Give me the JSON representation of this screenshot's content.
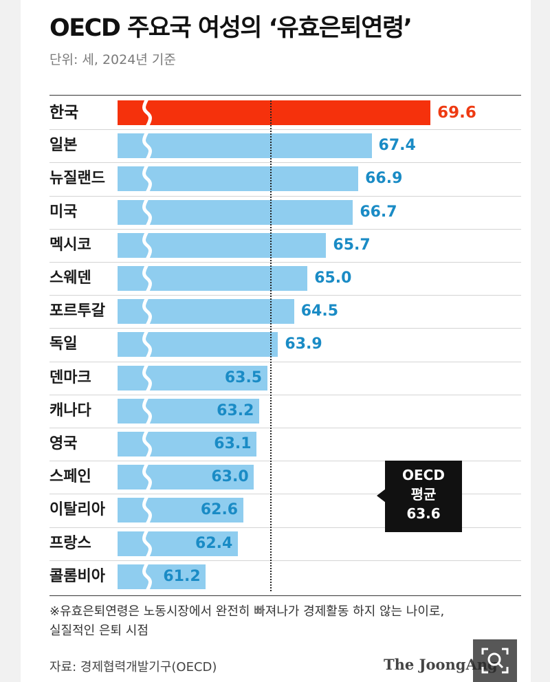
{
  "title": "OECD 주요국 여성의 ‘유효은퇴연령’",
  "subtitle": "단위: 세, 2024년 기준",
  "footnote": [
    "※유효은퇴연령은 노동시장에서 완전히 빠져나가 경제활동 하지 않는 나이로,",
    "실질적인 은퇴 시점"
  ],
  "source": "자료: 경제협력개발기구(OECD)",
  "logo": "The JoongAng",
  "callout": {
    "line1": "OECD",
    "line2": "평균",
    "line3": "63.6"
  },
  "colors": {
    "highlight": "#f5310c",
    "bar": "#8fcdef",
    "value_text": "#1a8bc5",
    "highlight_text": "#ee3a12"
  },
  "icons": {
    "zoom": "zoom-magnifier-icon"
  },
  "chart_data": {
    "type": "bar",
    "orientation": "horizontal",
    "categories": [
      "한국",
      "일본",
      "뉴질랜드",
      "미국",
      "멕시코",
      "스웨덴",
      "포르투갈",
      "독일",
      "덴마크",
      "캐나다",
      "영국",
      "스페인",
      "이탈리아",
      "프랑스",
      "콜롬비아"
    ],
    "values": [
      69.6,
      67.4,
      66.9,
      66.7,
      65.7,
      65.0,
      64.5,
      63.9,
      63.5,
      63.2,
      63.1,
      63.0,
      62.6,
      62.4,
      61.2
    ],
    "labels": [
      "69.6",
      "67.4",
      "66.9",
      "66.7",
      "65.7",
      "65.0",
      "64.5",
      "63.9",
      "63.5",
      "63.2",
      "63.1",
      "63.0",
      "62.6",
      "62.4",
      "61.2"
    ],
    "highlight_index": 0,
    "reference_line": {
      "value": 63.6,
      "label": "OECD 평균"
    },
    "axis_break": true,
    "grid": false,
    "legend": "none"
  }
}
